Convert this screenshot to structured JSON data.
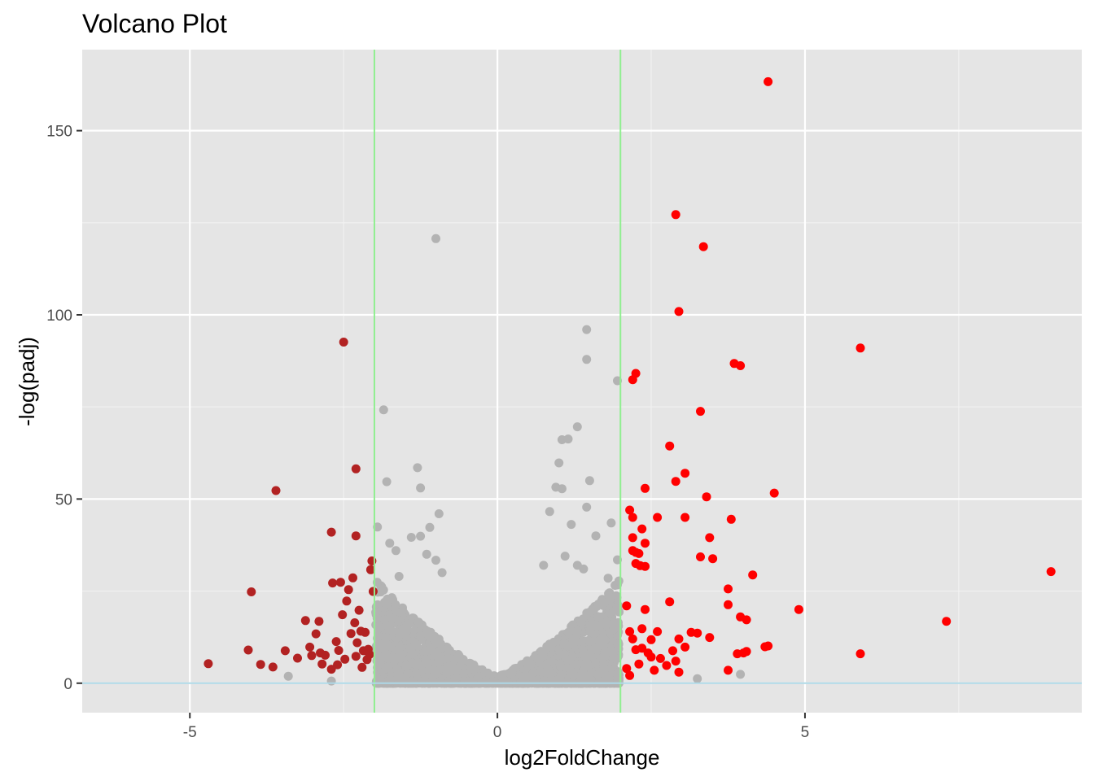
{
  "chart_data": {
    "type": "scatter",
    "title": "Volcano Plot",
    "xlabel": "log2FoldChange",
    "ylabel": "-log(padj)",
    "xlim": [
      -6.75,
      9.5
    ],
    "ylim": [
      -8,
      172
    ],
    "x_ticks": [
      -5,
      0,
      5
    ],
    "x_tick_labels": [
      "-5",
      "0",
      "5"
    ],
    "y_ticks": [
      0,
      50,
      100,
      150
    ],
    "y_tick_labels": [
      "0",
      "50",
      "100",
      "150"
    ],
    "grid": true,
    "legend": "none",
    "background_color": "#e5e5e5",
    "vlines": [
      {
        "x": -2,
        "color": "#90ee90"
      },
      {
        "x": 2,
        "color": "#90ee90"
      }
    ],
    "hlines": [
      {
        "y": 0,
        "color": "#add8e6"
      }
    ],
    "series": [
      {
        "color": "#b22222",
        "points": [
          [
            -4.7,
            5.3
          ],
          [
            -4.05,
            9.0
          ],
          [
            -3.85,
            5.1
          ],
          [
            -3.65,
            4.4
          ],
          [
            -3.45,
            8.8
          ],
          [
            -3.25,
            6.8
          ],
          [
            -3.12,
            17.0
          ],
          [
            -3.05,
            9.8
          ],
          [
            -3.02,
            7.5
          ],
          [
            -2.95,
            13.4
          ],
          [
            -2.9,
            16.8
          ],
          [
            -2.88,
            8.2
          ],
          [
            -2.85,
            5.2
          ],
          [
            -2.8,
            7.6
          ],
          [
            -2.7,
            3.8
          ],
          [
            -2.68,
            27.2
          ],
          [
            -2.62,
            11.3
          ],
          [
            -2.6,
            5.0
          ],
          [
            -2.58,
            8.9
          ],
          [
            -2.55,
            27.4
          ],
          [
            -2.52,
            18.6
          ],
          [
            -2.48,
            6.5
          ],
          [
            -2.45,
            22.3
          ],
          [
            -2.42,
            25.4
          ],
          [
            -2.38,
            13.5
          ],
          [
            -2.35,
            28.6
          ],
          [
            -2.32,
            16.4
          ],
          [
            -2.3,
            7.3
          ],
          [
            -2.28,
            11.0
          ],
          [
            -2.25,
            19.8
          ],
          [
            -2.22,
            14.1
          ],
          [
            -2.2,
            4.3
          ],
          [
            -2.18,
            8.8
          ],
          [
            -2.15,
            13.8
          ],
          [
            -2.12,
            6.4
          ],
          [
            -2.1,
            9.2
          ],
          [
            -2.08,
            7.8
          ],
          [
            -2.06,
            30.8
          ],
          [
            -2.04,
            33.2
          ],
          [
            -2.02,
            24.9
          ],
          [
            -3.6,
            52.3
          ],
          [
            -2.7,
            41.0
          ],
          [
            -2.3,
            40.0
          ],
          [
            -2.3,
            58.2
          ],
          [
            -2.5,
            92.6
          ],
          [
            -4.0,
            24.8
          ]
        ]
      },
      {
        "color": "#ff0000",
        "points": [
          [
            4.4,
            163.3
          ],
          [
            2.9,
            127.2
          ],
          [
            3.35,
            118.5
          ],
          [
            2.95,
            100.9
          ],
          [
            5.9,
            91.0
          ],
          [
            3.85,
            86.8
          ],
          [
            3.95,
            86.2
          ],
          [
            2.25,
            84.1
          ],
          [
            2.2,
            82.4
          ],
          [
            3.3,
            73.8
          ],
          [
            2.8,
            64.4
          ],
          [
            3.05,
            57.0
          ],
          [
            2.9,
            54.8
          ],
          [
            4.5,
            51.6
          ],
          [
            2.4,
            52.9
          ],
          [
            3.4,
            50.6
          ],
          [
            2.15,
            47.0
          ],
          [
            2.2,
            45.0
          ],
          [
            2.6,
            45.0
          ],
          [
            3.05,
            45.0
          ],
          [
            3.8,
            44.5
          ],
          [
            2.35,
            41.9
          ],
          [
            2.2,
            39.5
          ],
          [
            3.45,
            39.5
          ],
          [
            2.4,
            38.0
          ],
          [
            2.2,
            36.0
          ],
          [
            2.25,
            35.5
          ],
          [
            2.3,
            35.2
          ],
          [
            3.3,
            34.3
          ],
          [
            3.5,
            33.8
          ],
          [
            2.25,
            32.5
          ],
          [
            2.32,
            31.9
          ],
          [
            2.4,
            31.7
          ],
          [
            4.15,
            29.4
          ],
          [
            9.0,
            30.3
          ],
          [
            3.75,
            25.6
          ],
          [
            2.8,
            22.1
          ],
          [
            2.1,
            21.0
          ],
          [
            2.4,
            20.0
          ],
          [
            4.9,
            20.0
          ],
          [
            3.75,
            21.3
          ],
          [
            3.95,
            18.0
          ],
          [
            4.05,
            17.2
          ],
          [
            7.3,
            16.8
          ],
          [
            2.15,
            14.0
          ],
          [
            2.35,
            14.8
          ],
          [
            2.6,
            14.0
          ],
          [
            3.15,
            13.8
          ],
          [
            3.25,
            13.6
          ],
          [
            3.45,
            12.4
          ],
          [
            2.2,
            12.0
          ],
          [
            2.5,
            11.8
          ],
          [
            2.95,
            12.0
          ],
          [
            3.05,
            9.8
          ],
          [
            2.35,
            9.5
          ],
          [
            2.45,
            8.2
          ],
          [
            2.65,
            6.7
          ],
          [
            2.9,
            6.0
          ],
          [
            2.85,
            8.8
          ],
          [
            4.35,
            9.9
          ],
          [
            4.4,
            10.1
          ],
          [
            4.0,
            8.2
          ],
          [
            4.05,
            8.6
          ],
          [
            3.9,
            8.0
          ],
          [
            5.9,
            8.0
          ],
          [
            2.1,
            4.0
          ],
          [
            2.3,
            5.2
          ],
          [
            2.55,
            3.5
          ],
          [
            2.75,
            4.8
          ],
          [
            2.95,
            3.0
          ],
          [
            3.75,
            3.5
          ],
          [
            2.15,
            2.1
          ],
          [
            2.5,
            7.1
          ],
          [
            2.25,
            9.1
          ]
        ]
      },
      {
        "color": "#b3b3b3",
        "points": [
          [
            -1.0,
            120.7
          ],
          [
            1.45,
            96.0
          ],
          [
            1.45,
            87.9
          ],
          [
            1.95,
            82.1
          ],
          [
            -1.85,
            74.2
          ],
          [
            1.3,
            69.6
          ],
          [
            1.05,
            66.1
          ],
          [
            1.15,
            66.3
          ],
          [
            -1.3,
            58.5
          ],
          [
            1.0,
            59.8
          ],
          [
            -1.25,
            53.0
          ],
          [
            0.95,
            53.2
          ],
          [
            1.05,
            52.8
          ],
          [
            1.5,
            55.0
          ],
          [
            -1.8,
            54.7
          ],
          [
            1.45,
            47.8
          ],
          [
            0.85,
            46.6
          ],
          [
            -0.95,
            46.0
          ],
          [
            1.2,
            43.1
          ],
          [
            1.85,
            43.5
          ],
          [
            -1.95,
            42.4
          ],
          [
            -1.1,
            42.3
          ],
          [
            -1.4,
            39.6
          ],
          [
            -1.25,
            39.9
          ],
          [
            1.6,
            40.0
          ],
          [
            -1.75,
            38.0
          ],
          [
            -1.65,
            36.0
          ],
          [
            -1.15,
            35.0
          ],
          [
            -1.0,
            33.4
          ],
          [
            1.3,
            32.0
          ],
          [
            1.4,
            31.0
          ],
          [
            1.1,
            34.5
          ],
          [
            0.75,
            32.0
          ],
          [
            -0.9,
            30.0
          ],
          [
            1.95,
            33.5
          ],
          [
            -1.6,
            29.0
          ],
          [
            1.8,
            28.5
          ],
          [
            -2.7,
            0.6
          ],
          [
            -3.4,
            1.9
          ],
          [
            3.25,
            1.2
          ],
          [
            3.95,
            2.4
          ]
        ]
      }
    ]
  }
}
